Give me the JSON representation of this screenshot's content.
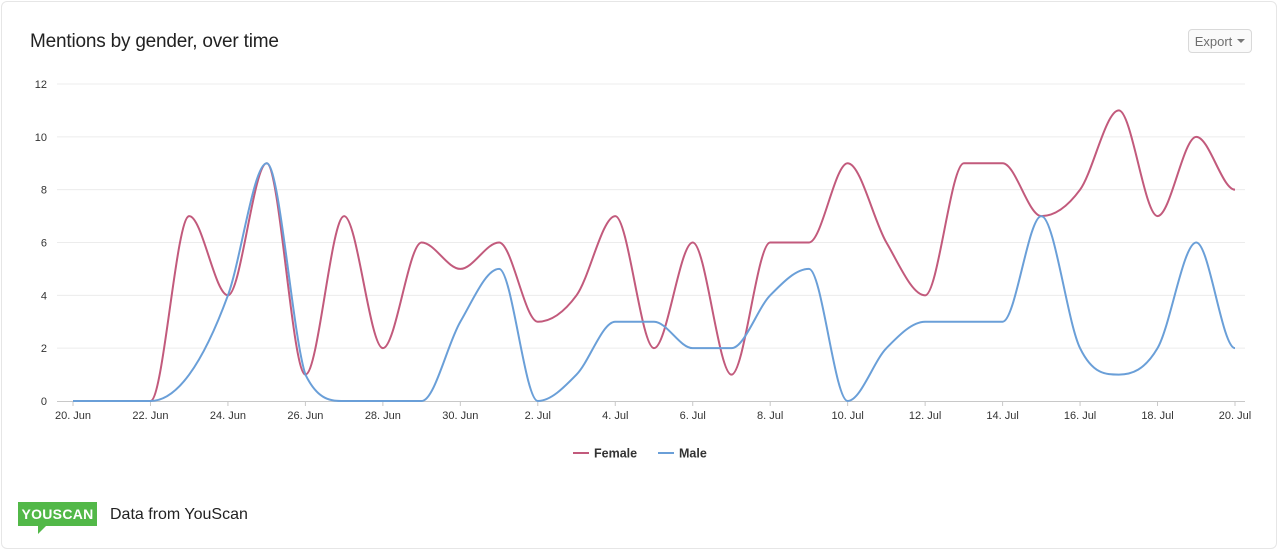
{
  "header": {
    "title": "Mentions by gender, over time",
    "export_label": "Export"
  },
  "footer": {
    "logo_text": "YOUSCAN",
    "source_text": "Data from YouScan"
  },
  "colors": {
    "female": "#c25a7c",
    "male": "#6a9fd8",
    "grid": "#ececec"
  },
  "chart_data": {
    "type": "line",
    "title": "Mentions by gender, over time",
    "xlabel": "",
    "ylabel": "",
    "ylim": [
      0,
      12
    ],
    "yticks": [
      0,
      2,
      4,
      6,
      8,
      10,
      12
    ],
    "x": [
      "20. Jun",
      "21. Jun",
      "22. Jun",
      "23. Jun",
      "24. Jun",
      "25. Jun",
      "26. Jun",
      "27. Jun",
      "28. Jun",
      "29. Jun",
      "30. Jun",
      "1. Jul",
      "2. Jul",
      "3. Jul",
      "4. Jul",
      "5. Jul",
      "6. Jul",
      "7. Jul",
      "8. Jul",
      "9. Jul",
      "10. Jul",
      "11. Jul",
      "12. Jul",
      "13. Jul",
      "14. Jul",
      "15. Jul",
      "16. Jul",
      "17. Jul",
      "18. Jul",
      "19. Jul",
      "20. Jul"
    ],
    "xtick_labels": [
      "20. Jun",
      "22. Jun",
      "24. Jun",
      "26. Jun",
      "28. Jun",
      "30. Jun",
      "2. Jul",
      "4. Jul",
      "6. Jul",
      "8. Jul",
      "10. Jul",
      "12. Jul",
      "14. Jul",
      "16. Jul",
      "18. Jul",
      "20. Jul"
    ],
    "series": [
      {
        "name": "Female",
        "color": "#c25a7c",
        "values": [
          0,
          0,
          0,
          7,
          4,
          9,
          1,
          7,
          2,
          6,
          5,
          6,
          3,
          4,
          7,
          2,
          6,
          1,
          6,
          6,
          9,
          6,
          4,
          9,
          9,
          7,
          8,
          11,
          7,
          10,
          8
        ]
      },
      {
        "name": "Male",
        "color": "#6a9fd8",
        "values": [
          0,
          0,
          0,
          1,
          4,
          9,
          1,
          0,
          0,
          0,
          3,
          5,
          0,
          1,
          3,
          3,
          2,
          2,
          4,
          5,
          0,
          2,
          3,
          3,
          3,
          7,
          2,
          1,
          2,
          6,
          2
        ]
      }
    ],
    "legend_position": "bottom-center",
    "grid": true
  }
}
